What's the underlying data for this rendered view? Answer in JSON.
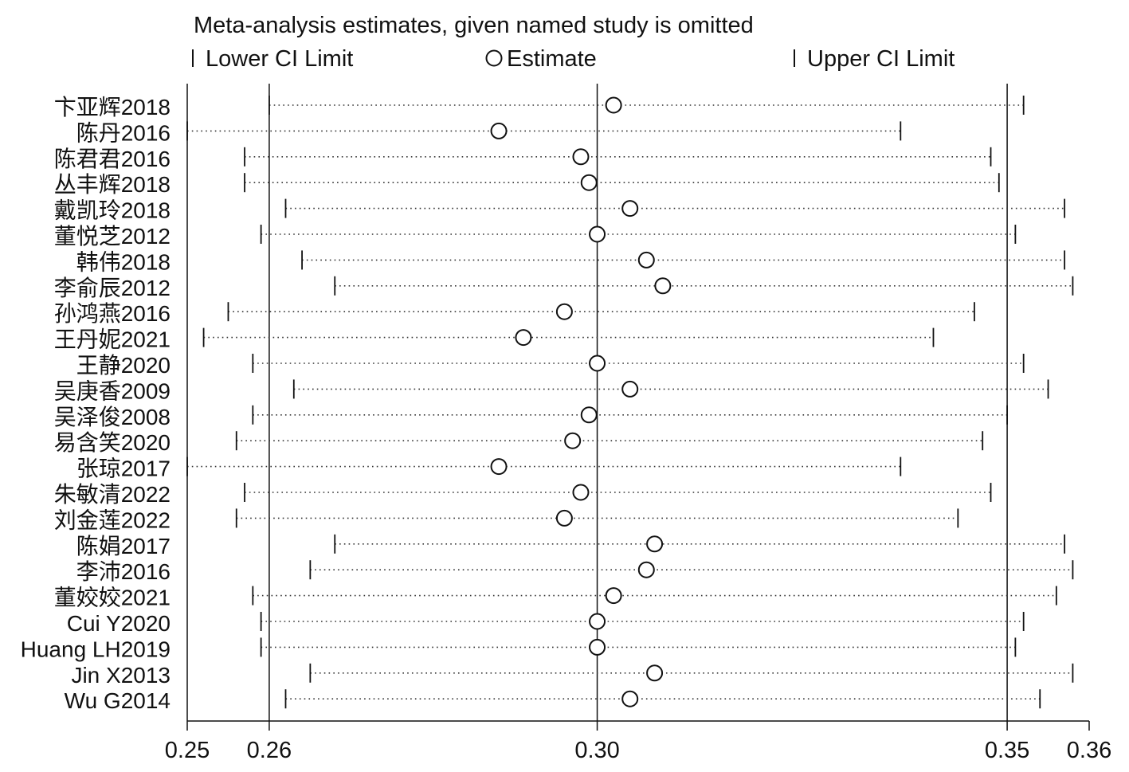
{
  "chart_data": {
    "type": "forest-sensitivity",
    "title": "Meta-analysis estimates, given named study is omitted",
    "legend": {
      "lower": "Lower CI Limit",
      "estimate": "Estimate",
      "upper": "Upper CI Limit"
    },
    "xlim": [
      0.25,
      0.36
    ],
    "x_ticks": [
      {
        "value": 0.25,
        "label": "0.25"
      },
      {
        "value": 0.26,
        "label": "0.26"
      },
      {
        "value": 0.3,
        "label": "0.30"
      },
      {
        "value": 0.35,
        "label": "0.35"
      },
      {
        "value": 0.36,
        "label": "0.36"
      }
    ],
    "reference_lines": [
      0.26,
      0.3,
      0.35
    ],
    "studies": [
      {
        "name": "卞亚辉2018",
        "lower": 0.26,
        "estimate": 0.302,
        "upper": 0.352
      },
      {
        "name": "陈丹2016",
        "lower": 0.25,
        "estimate": 0.288,
        "upper": 0.337
      },
      {
        "name": "陈君君2016",
        "lower": 0.257,
        "estimate": 0.298,
        "upper": 0.348
      },
      {
        "name": "丛丰辉2018",
        "lower": 0.257,
        "estimate": 0.299,
        "upper": 0.349
      },
      {
        "name": "戴凯玲2018",
        "lower": 0.262,
        "estimate": 0.304,
        "upper": 0.357
      },
      {
        "name": "董悦芝2012",
        "lower": 0.259,
        "estimate": 0.3,
        "upper": 0.351
      },
      {
        "name": "韩伟2018",
        "lower": 0.264,
        "estimate": 0.306,
        "upper": 0.357
      },
      {
        "name": "李俞辰2012",
        "lower": 0.268,
        "estimate": 0.308,
        "upper": 0.358
      },
      {
        "name": "孙鸿燕2016",
        "lower": 0.255,
        "estimate": 0.296,
        "upper": 0.346
      },
      {
        "name": "王丹妮2021",
        "lower": 0.252,
        "estimate": 0.291,
        "upper": 0.341
      },
      {
        "name": "王静2020",
        "lower": 0.258,
        "estimate": 0.3,
        "upper": 0.352
      },
      {
        "name": "吴庚香2009",
        "lower": 0.263,
        "estimate": 0.304,
        "upper": 0.355
      },
      {
        "name": "吴泽俊2008",
        "lower": 0.258,
        "estimate": 0.299,
        "upper": 0.35
      },
      {
        "name": "易含笑2020",
        "lower": 0.256,
        "estimate": 0.297,
        "upper": 0.347
      },
      {
        "name": "张琼2017",
        "lower": 0.25,
        "estimate": 0.288,
        "upper": 0.337
      },
      {
        "name": "朱敏清2022",
        "lower": 0.257,
        "estimate": 0.298,
        "upper": 0.348
      },
      {
        "name": "刘金莲2022",
        "lower": 0.256,
        "estimate": 0.296,
        "upper": 0.344
      },
      {
        "name": "陈娟2017",
        "lower": 0.268,
        "estimate": 0.307,
        "upper": 0.357
      },
      {
        "name": "李沛2016",
        "lower": 0.265,
        "estimate": 0.306,
        "upper": 0.358
      },
      {
        "name": "董姣姣2021",
        "lower": 0.258,
        "estimate": 0.302,
        "upper": 0.356
      },
      {
        "name": "Cui Y2020",
        "lower": 0.259,
        "estimate": 0.3,
        "upper": 0.352
      },
      {
        "name": "Huang LH2019",
        "lower": 0.259,
        "estimate": 0.3,
        "upper": 0.351
      },
      {
        "name": "Jin X2013",
        "lower": 0.265,
        "estimate": 0.307,
        "upper": 0.358
      },
      {
        "name": "Wu G2014",
        "lower": 0.262,
        "estimate": 0.304,
        "upper": 0.354
      }
    ]
  }
}
